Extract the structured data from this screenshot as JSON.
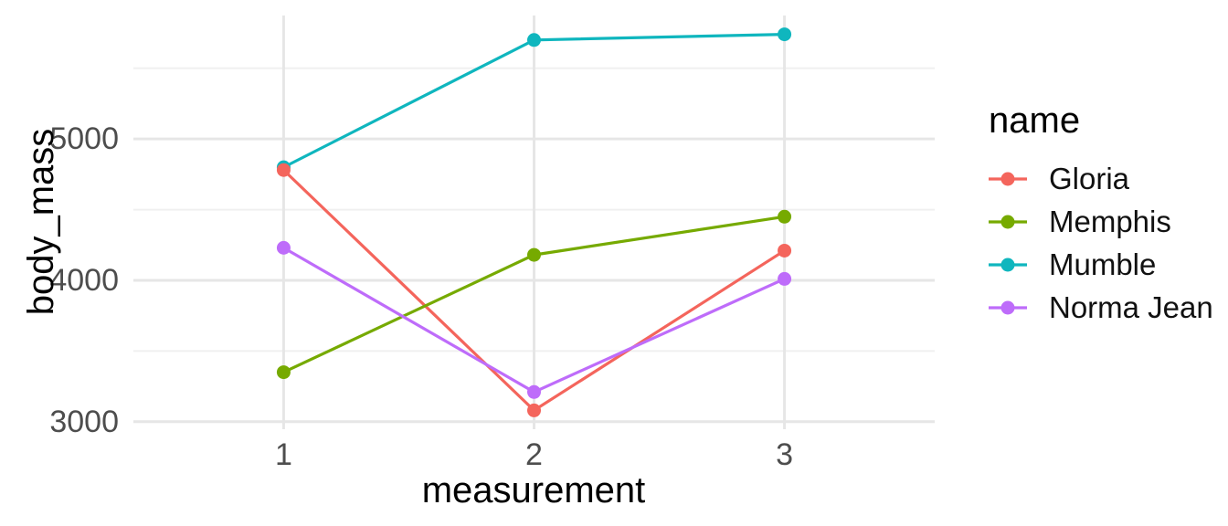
{
  "chart_data": {
    "type": "line",
    "title": "",
    "xlabel": "measurement",
    "ylabel": "body_mass",
    "legend_title": "name",
    "legend_position": "right",
    "x": [
      1,
      2,
      3
    ],
    "x_tick_labels": [
      "1",
      "2",
      "3"
    ],
    "y_ticks": [
      3000,
      4000,
      5000
    ],
    "y_tick_labels": [
      "3000",
      "4000",
      "5000"
    ],
    "y_minor_ticks": [
      3500,
      4500,
      5500
    ],
    "xlim": [
      0.4,
      3.6
    ],
    "ylim": [
      2947,
      5873
    ],
    "grid": "horizontal major+minor, vertical major only",
    "series": [
      {
        "name": "Gloria",
        "color": "#F4655C",
        "values": [
          4780,
          3080,
          4210
        ]
      },
      {
        "name": "Memphis",
        "color": "#76AA00",
        "values": [
          3350,
          4180,
          4450
        ]
      },
      {
        "name": "Mumble",
        "color": "#0FB6BE",
        "values": [
          4800,
          5700,
          5740
        ]
      },
      {
        "name": "Norma Jean",
        "color": "#BE6CFA",
        "values": [
          4230,
          3210,
          4010
        ]
      }
    ]
  },
  "style": {
    "background": "#ffffff",
    "grid_major_color": "#e6e6e6",
    "grid_minor_color": "#f0f0f0",
    "tick_label_color": "#4d4d4d",
    "title_color": "#000000"
  }
}
